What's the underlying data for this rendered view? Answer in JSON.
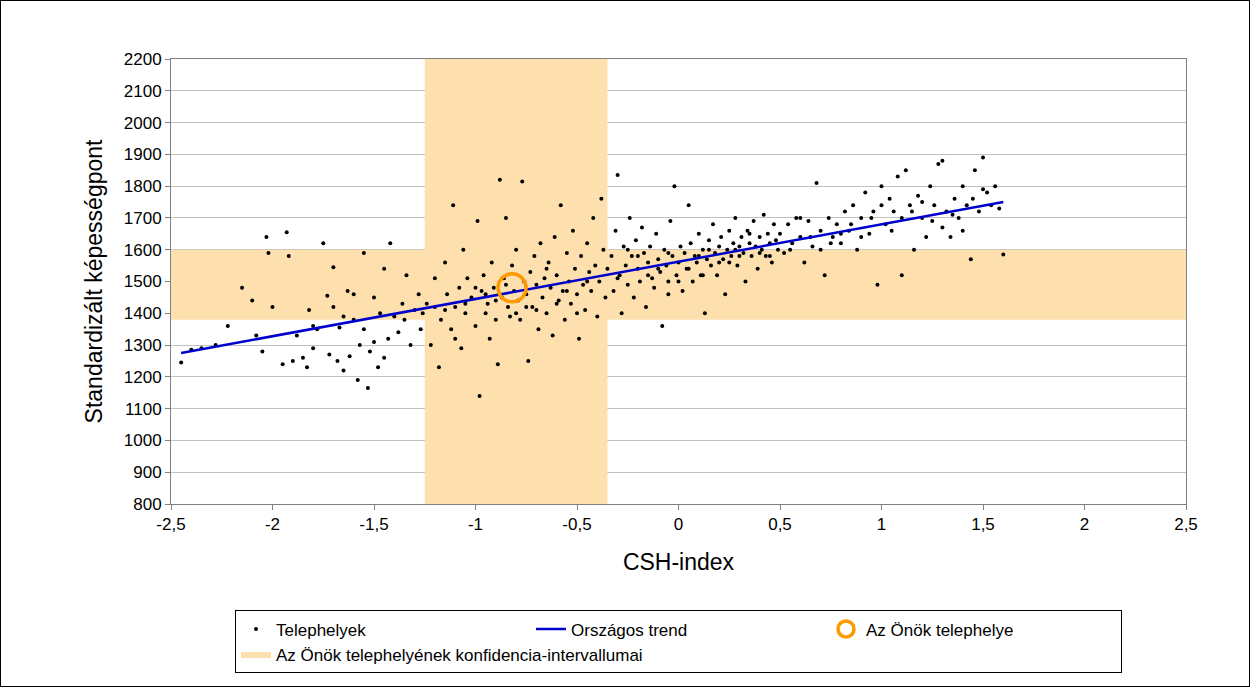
{
  "chart_data": {
    "type": "scatter",
    "xlabel": "CSH-index",
    "ylabel": "Standardizált képességpont",
    "xlim": [
      -2.5,
      2.5
    ],
    "xticks": [
      {
        "value": -2.5,
        "label": "-2,5"
      },
      -2,
      {
        "value": -1.5,
        "label": "-1,5"
      },
      -1,
      {
        "value": -0.5,
        "label": "-0,5"
      },
      0,
      {
        "value": 0.5,
        "label": "0,5"
      },
      1,
      {
        "value": 1.5,
        "label": "1,5"
      },
      2,
      {
        "value": 2.5,
        "label": "2,5"
      }
    ],
    "ylim": [
      800,
      2200
    ],
    "yticks": [
      800,
      900,
      1000,
      1100,
      1200,
      1300,
      1400,
      1500,
      1600,
      1700,
      1800,
      1900,
      2000,
      2100,
      2200
    ],
    "grid": "y",
    "legend": "bottom",
    "series": [
      {
        "name": "Telephelyek",
        "type": "scatter",
        "marker": "circle",
        "color": "#000000",
        "x": [
          -2.45,
          -2.4,
          -2.35,
          -2.28,
          -2.22,
          -2.15,
          -2.1,
          -2.08,
          -2.05,
          -2.03,
          -2.02,
          -2.0,
          -1.95,
          -1.93,
          -1.92,
          -1.9,
          -1.88,
          -1.85,
          -1.83,
          -1.82,
          -1.8,
          -1.78,
          -1.75,
          -1.73,
          -1.72,
          -1.7,
          -1.68,
          -1.67,
          -1.65,
          -1.63,
          -1.62,
          -1.6,
          -1.58,
          -1.57,
          -1.55,
          -1.53,
          -1.52,
          -1.5,
          -1.48,
          -1.47,
          -1.45,
          -1.43,
          -1.42,
          -1.4,
          -1.38,
          -1.36,
          -1.34,
          -1.32,
          -1.3,
          -1.28,
          -1.27,
          -1.26,
          -1.55,
          -1.6,
          -1.7,
          -1.8,
          -1.65,
          -1.5,
          -1.45,
          -1.35,
          -1.24,
          -1.22,
          -1.2,
          -1.18,
          -1.17,
          -1.15,
          -1.14,
          -1.12,
          -1.11,
          -1.1,
          -1.08,
          -1.07,
          -1.06,
          -1.05,
          -1.04,
          -1.02,
          -1.0,
          -0.99,
          -0.98,
          -0.97,
          -0.96,
          -0.95,
          -0.94,
          -0.93,
          -0.92,
          -0.91,
          -0.9,
          -0.89,
          -0.88,
          -0.87,
          -0.86,
          -0.85,
          -0.84,
          -0.83,
          -0.82,
          -0.81,
          -0.8,
          -0.79,
          -0.78,
          -0.77,
          -0.76,
          -0.75,
          -0.74,
          -0.73,
          -0.72,
          -0.71,
          -0.7,
          -0.69,
          -0.68,
          -0.67,
          -0.66,
          -0.65,
          -0.64,
          -0.63,
          -0.62,
          -0.61,
          -0.6,
          -0.59,
          -0.58,
          -0.57,
          -0.56,
          -0.55,
          -0.54,
          -0.53,
          -0.52,
          -0.51,
          -0.5,
          -0.49,
          -0.48,
          -0.47,
          -0.46,
          -0.45,
          -0.44,
          -0.43,
          -0.42,
          -0.41,
          -0.4,
          -0.39,
          -0.38,
          -0.37,
          -0.36,
          -1.2,
          -1.1,
          -1.0,
          -0.9,
          -0.8,
          -0.7,
          -0.6,
          -0.5,
          -0.45,
          -0.55,
          -0.65,
          -0.75,
          -0.85,
          -0.95,
          -1.05,
          -1.15,
          -0.33,
          -0.32,
          -0.31,
          -0.3,
          -0.29,
          -0.28,
          -0.27,
          -0.26,
          -0.25,
          -0.24,
          -0.23,
          -0.22,
          -0.21,
          -0.2,
          -0.19,
          -0.18,
          -0.17,
          -0.16,
          -0.15,
          -0.14,
          -0.13,
          -0.12,
          -0.11,
          -0.1,
          -0.09,
          -0.08,
          -0.07,
          -0.06,
          -0.05,
          -0.04,
          -0.03,
          -0.02,
          -0.01,
          0.0,
          0.01,
          0.02,
          0.03,
          0.04,
          0.05,
          0.06,
          0.07,
          0.08,
          0.09,
          0.1,
          0.11,
          0.12,
          0.13,
          0.14,
          0.15,
          0.16,
          0.17,
          0.18,
          0.19,
          0.2,
          0.21,
          0.22,
          0.23,
          0.24,
          0.25,
          0.26,
          0.27,
          0.28,
          0.29,
          0.3,
          0.31,
          0.32,
          0.33,
          0.34,
          0.35,
          0.36,
          0.37,
          0.38,
          0.39,
          0.4,
          0.41,
          0.42,
          0.43,
          0.44,
          0.45,
          0.46,
          0.47,
          0.48,
          0.49,
          -0.3,
          -0.2,
          -0.1,
          0.0,
          0.1,
          0.2,
          0.3,
          0.4,
          -0.25,
          -0.15,
          -0.05,
          0.05,
          0.15,
          0.25,
          0.35,
          0.45,
          -0.35,
          -0.05,
          0.12,
          0.28,
          0.5,
          0.52,
          0.54,
          0.56,
          0.58,
          0.6,
          0.62,
          0.64,
          0.66,
          0.68,
          0.7,
          0.72,
          0.74,
          0.76,
          0.78,
          0.8,
          0.82,
          0.84,
          0.86,
          0.88,
          0.9,
          0.92,
          0.94,
          0.96,
          0.98,
          1.0,
          1.02,
          1.04,
          1.06,
          1.08,
          1.1,
          1.12,
          1.14,
          1.16,
          1.18,
          1.2,
          1.22,
          1.24,
          1.26,
          1.28,
          1.3,
          1.32,
          1.34,
          1.36,
          1.38,
          1.4,
          1.42,
          1.44,
          1.46,
          1.48,
          1.5,
          1.52,
          1.54,
          1.56,
          1.58,
          1.6,
          0.55,
          0.65,
          0.75,
          0.85,
          0.95,
          1.05,
          1.15,
          1.25,
          1.35,
          1.45,
          1.1,
          1.3,
          0.6,
          0.7,
          0.8,
          0.9,
          1.0,
          1.2,
          1.4,
          1.5
        ],
        "values": [
          1245,
          1285,
          1290,
          1300,
          1360,
          1480,
          1440,
          1330,
          1280,
          1640,
          1590,
          1420,
          1240,
          1655,
          1580,
          1250,
          1330,
          1260,
          1230,
          1410,
          1290,
          1350,
          1620,
          1455,
          1270,
          1545,
          1250,
          1355,
          1220,
          1470,
          1265,
          1380,
          1190,
          1300,
          1350,
          1165,
          1280,
          1450,
          1230,
          1400,
          1540,
          1320,
          1620,
          1390,
          1340,
          1430,
          1520,
          1300,
          1410,
          1460,
          1350,
          1400,
          1590,
          1460,
          1420,
          1360,
          1390,
          1310,
          1260,
          1380,
          1430,
          1300,
          1510,
          1230,
          1380,
          1560,
          1460,
          1350,
          1740,
          1420,
          1480,
          1290,
          1600,
          1400,
          1510,
          1450,
          1360,
          1690,
          1140,
          1470,
          1520,
          1400,
          1430,
          1320,
          1560,
          1480,
          1380,
          1240,
          1820,
          1450,
          1510,
          1700,
          1420,
          1390,
          1550,
          1470,
          1600,
          1440,
          1380,
          1815,
          1500,
          1460,
          1250,
          1530,
          1420,
          1580,
          1490,
          1350,
          1620,
          1450,
          1510,
          1400,
          1560,
          1480,
          1330,
          1640,
          1520,
          1440,
          1740,
          1470,
          1380,
          1590,
          1500,
          1430,
          1660,
          1540,
          1460,
          1320,
          1580,
          1490,
          1410,
          1620,
          1530,
          1470,
          1700,
          1550,
          1390,
          1500,
          1760,
          1600,
          1450,
          1420,
          1320,
          1480,
          1440,
          1400,
          1410,
          1430,
          1400,
          1500,
          1470,
          1540,
          1420,
          1490,
          1460,
          1430,
          1410,
          1580,
          1470,
          1660,
          1835,
          1520,
          1400,
          1610,
          1550,
          1490,
          1700,
          1580,
          1450,
          1630,
          1540,
          1500,
          1670,
          1590,
          1420,
          1560,
          1610,
          1510,
          1480,
          1650,
          1570,
          1530,
          1360,
          1600,
          1550,
          1500,
          1690,
          1580,
          1800,
          1520,
          1560,
          1610,
          1470,
          1590,
          1540,
          1740,
          1620,
          1500,
          1580,
          1560,
          1650,
          1520,
          1600,
          1400,
          1570,
          1630,
          1550,
          1680,
          1590,
          1520,
          1610,
          1640,
          1570,
          1460,
          1600,
          1660,
          1580,
          1620,
          1700,
          1550,
          1610,
          1640,
          1590,
          1500,
          1660,
          1620,
          1580,
          1690,
          1610,
          1540,
          1640,
          1600,
          1710,
          1580,
          1650,
          1620,
          1560,
          1680,
          1630,
          1600,
          1510,
          1580,
          1540,
          1500,
          1580,
          1560,
          1580,
          1590,
          1600,
          1520,
          1590,
          1540,
          1600,
          1560,
          1650,
          1580,
          1540,
          1460,
          1520,
          1600,
          1650,
          1590,
          1680,
          1620,
          1700,
          1640,
          1560,
          1690,
          1610,
          1810,
          1660,
          1520,
          1700,
          1640,
          1680,
          1620,
          1720,
          1660,
          1740,
          1600,
          1700,
          1780,
          1650,
          1720,
          1490,
          1740,
          1680,
          1760,
          1720,
          1830,
          1700,
          1850,
          1740,
          1600,
          1770,
          1700,
          1640,
          1800,
          1740,
          1870,
          1880,
          1720,
          1640,
          1760,
          1700,
          1800,
          1740,
          1570,
          1850,
          1720,
          1890,
          1780,
          1740,
          1800,
          1730,
          1585,
          1600,
          1640,
          1620,
          1680,
          1700,
          1660,
          1720,
          1690,
          1710,
          1760,
          1520,
          1670,
          1700,
          1600,
          1650,
          1640,
          1800,
          1750,
          1660,
          1790
        ]
      },
      {
        "name": "Országos trend",
        "type": "line",
        "line_style": "solid",
        "color": "#0000cc",
        "x": [
          -2.45,
          1.6
        ],
        "values": [
          1275,
          1750
        ]
      },
      {
        "name": "Az Önök telephelye",
        "type": "scatter",
        "marker": "circle-open",
        "color": "#ff9900",
        "x": [
          -0.82
        ],
        "values": [
          1480
        ]
      },
      {
        "name": "Az Önök telephelyének konfidencia-intervallumai",
        "type": "band",
        "color": "#fde0ae",
        "x_interval": [
          -1.25,
          -0.35
        ],
        "y_interval": [
          1380,
          1600
        ]
      }
    ]
  }
}
